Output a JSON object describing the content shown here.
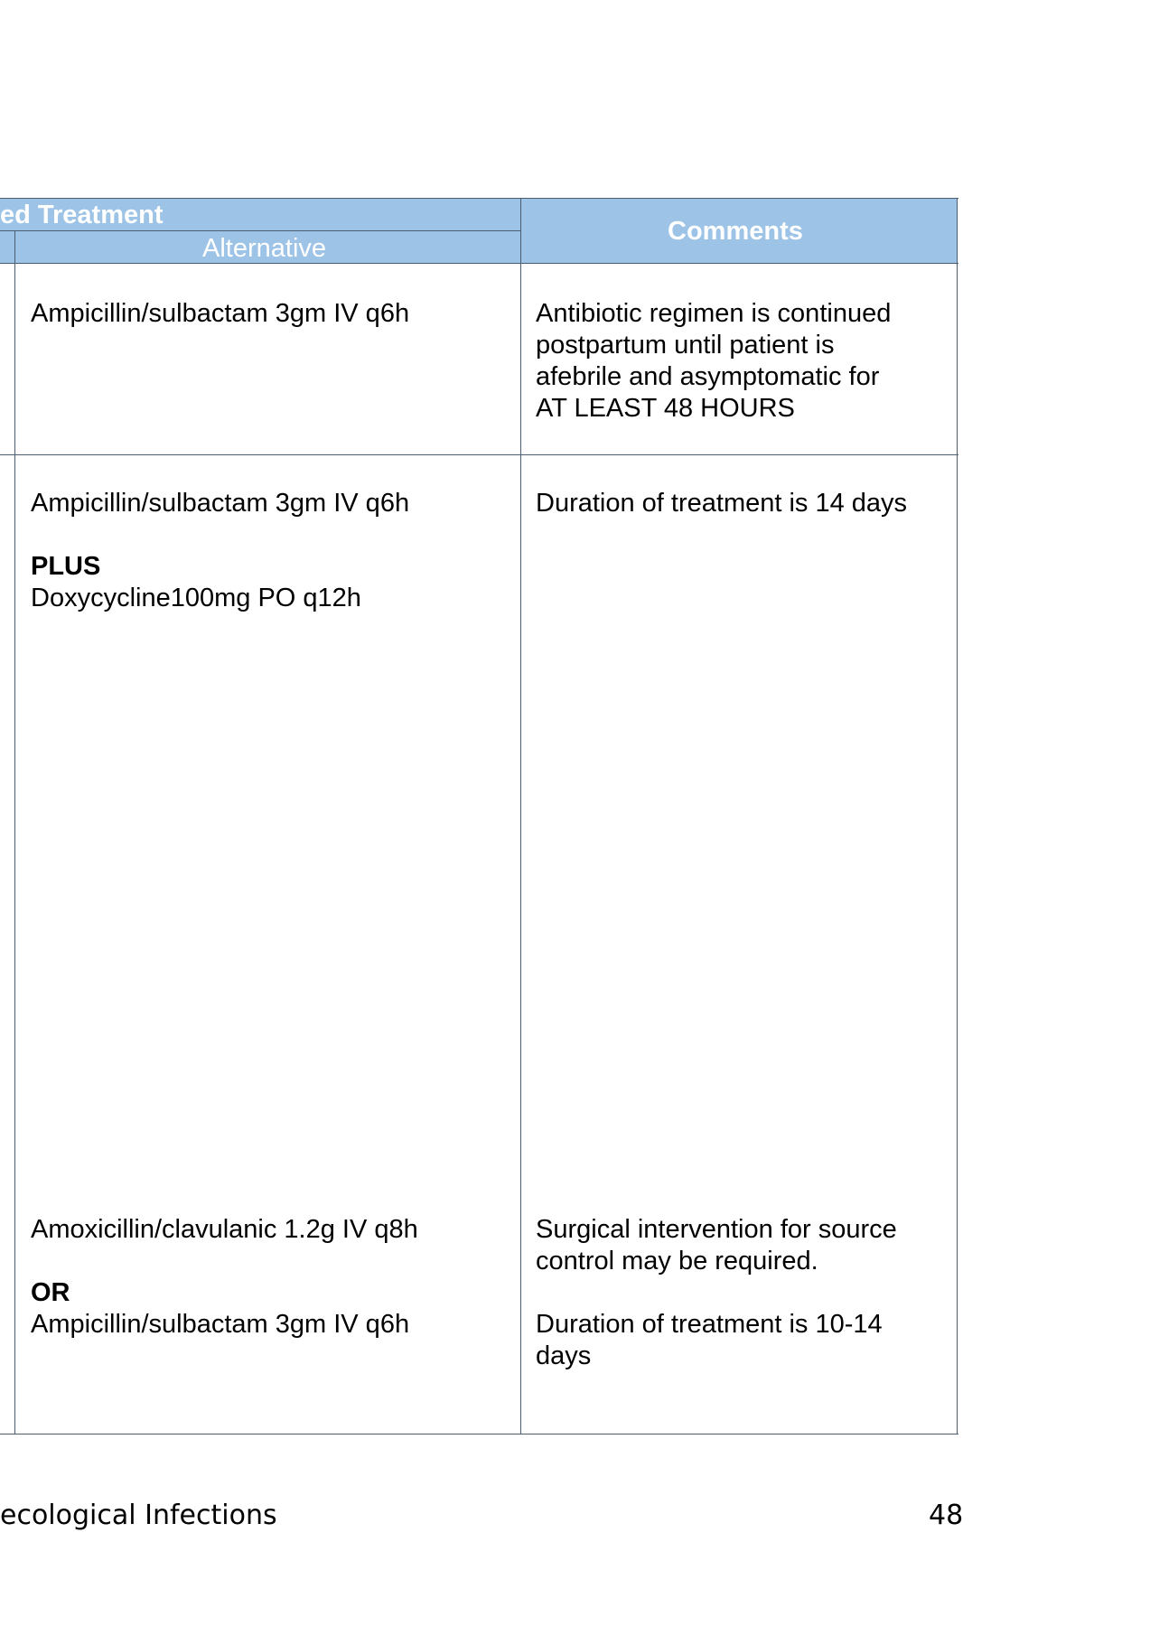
{
  "table": {
    "header": {
      "group_title": "ed Treatment",
      "alternative": "Alternative",
      "comments": "Comments"
    },
    "rows": [
      {
        "alternative": [
          "Ampicillin/sulbactam 3gm IV q6h"
        ],
        "comments": [
          "Antibiotic regimen is continued",
          "postpartum until patient is",
          "afebrile and asymptomatic for",
          "AT LEAST 48 HOURS"
        ]
      },
      {
        "alternative_line1": "Ampicillin/sulbactam 3gm IV q6h",
        "alternative_connector": "PLUS",
        "alternative_line2": "Doxycycline100mg PO q12h",
        "comments": [
          "Duration of treatment is 14 days"
        ]
      },
      {
        "alternative_line1": "Amoxicillin/clavulanic 1.2g IV q8h",
        "alternative_connector": "OR",
        "alternative_line2": "Ampicillin/sulbactam 3gm IV q6h",
        "comments_para1": [
          "Surgical intervention for source",
          "control may be required."
        ],
        "comments_para2": [
          "Duration of treatment is 10-14",
          "days"
        ]
      }
    ]
  },
  "footer": {
    "section_title": "ecological Infections",
    "page_number": "48"
  }
}
